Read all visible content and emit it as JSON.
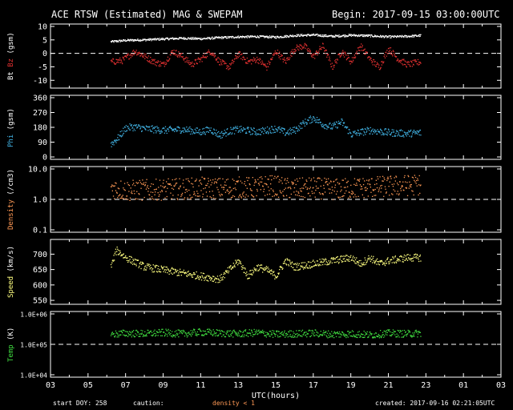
{
  "header": {
    "title": "ACE RTSW (Estimated) MAG & SWEPAM",
    "begin": "Begin: 2017-09-15 03:00:00UTC"
  },
  "footer": {
    "start_doy": "start DOY: 258",
    "caution": "caution:",
    "density_note": "density < 1",
    "created": "created: 2017-09-16 02:21:05UTC"
  },
  "colors": {
    "bt": "#ffffff",
    "bz": "#e03030",
    "phi": "#40b0e0",
    "density": "#ff9955",
    "speed": "#ffff80",
    "temp": "#40dd40",
    "axis": "#ffffff",
    "background": "#000000"
  },
  "chart_data": {
    "type": "scatter",
    "xlabel": "UTC(hours)",
    "x_ticks": [
      "03",
      "05",
      "07",
      "09",
      "11",
      "13",
      "15",
      "17",
      "19",
      "21",
      "23",
      "01",
      "03"
    ],
    "x_range_hours": [
      3,
      27
    ],
    "data_span_hours": [
      6.2,
      22.7
    ],
    "panels": [
      {
        "id": "mag",
        "ylabel": [
          {
            "text": "Bt",
            "color": "#ffffff"
          },
          {
            "text": "Bz",
            "color": "#e03030"
          },
          {
            "text": "(gsm)",
            "color": "#ffffff"
          }
        ],
        "ylim": [
          -12,
          10
        ],
        "ytick_values": [
          10,
          5,
          0,
          -5,
          -10
        ],
        "ytick_labels": [
          "10",
          "5",
          "0",
          "-5",
          "-10"
        ],
        "reference_line": 0,
        "log": false,
        "series": [
          {
            "name": "Bt",
            "color": "#ffffff",
            "x": [
              6.2,
              7,
              8,
              9,
              10,
              11,
              12,
              13,
              14,
              15,
              16,
              17,
              18,
              19,
              20,
              21,
              22,
              22.7
            ],
            "y": [
              4.5,
              5.0,
              5.2,
              5.5,
              5.8,
              5.6,
              6.0,
              6.3,
              6.4,
              6.2,
              6.8,
              7.0,
              6.5,
              6.9,
              6.7,
              6.3,
              6.5,
              6.8
            ],
            "jitter": 0.4
          },
          {
            "name": "Bz",
            "color": "#e03030",
            "x": [
              6.2,
              6.8,
              7.5,
              8,
              8.5,
              9,
              9.5,
              10,
              10.5,
              11,
              11.5,
              12,
              12.5,
              13,
              13.5,
              14,
              14.5,
              15,
              15.5,
              16,
              16.5,
              17,
              17.5,
              18,
              18.5,
              19,
              19.5,
              20,
              20.5,
              21,
              21.5,
              22,
              22.7
            ],
            "y": [
              -3,
              -2.5,
              1,
              -1,
              -3,
              -4,
              1,
              -1,
              -4,
              -2,
              1,
              -3,
              -5,
              0,
              -3,
              -2,
              -5,
              1,
              -3,
              2,
              3,
              -1,
              3,
              -5,
              1,
              -3,
              3,
              -2,
              -5,
              2,
              -2,
              -4,
              -3
            ],
            "jitter": 1.2
          }
        ]
      },
      {
        "id": "phi",
        "ylabel": [
          {
            "text": "Phi",
            "color": "#40b0e0"
          },
          {
            "text": "(gsm)",
            "color": "#ffffff"
          }
        ],
        "ylim": [
          0,
          360
        ],
        "ytick_values": [
          360,
          270,
          180,
          90,
          0
        ],
        "ytick_labels": [
          "360",
          "270",
          "180",
          "90",
          "0"
        ],
        "reference_line": null,
        "log": false,
        "series": [
          {
            "name": "Phi",
            "color": "#40b0e0",
            "x": [
              6.2,
              6.6,
              7,
              7.5,
              8,
              9,
              10,
              11,
              11.5,
              12,
              12.5,
              13,
              14,
              15,
              15.5,
              16,
              16.5,
              17,
              17.5,
              18,
              18.5,
              19,
              20,
              21,
              22,
              22.7
            ],
            "y": [
              80,
              120,
              180,
              185,
              175,
              165,
              170,
              155,
              170,
              135,
              160,
              170,
              155,
              175,
              150,
              165,
              210,
              240,
              200,
              185,
              215,
              140,
              165,
              150,
              145,
              150
            ],
            "jitter": 22
          }
        ]
      },
      {
        "id": "density",
        "ylabel": [
          {
            "text": "Density",
            "color": "#ff9955"
          },
          {
            "text": "(/cm3)",
            "color": "#ffffff"
          }
        ],
        "ylim": [
          0.1,
          10
        ],
        "ytick_values": [
          10,
          1,
          0.1
        ],
        "ytick_labels": [
          "10.0",
          "1.0",
          "0.1"
        ],
        "reference_line": 1,
        "log": true,
        "series": [
          {
            "name": "Density",
            "color": "#ff9955",
            "x": [
              6.2,
              7,
              8,
              9,
              10,
              11,
              12,
              13,
              14,
              14.5,
              15,
              15.5,
              16,
              17,
              18,
              19,
              20,
              21,
              22,
              22.7
            ],
            "y": [
              2.5,
              2.0,
              2.1,
              2.2,
              2.3,
              2.5,
              2.4,
              2.6,
              2.5,
              3.0,
              2.8,
              2.4,
              2.3,
              2.5,
              2.2,
              2.4,
              2.6,
              2.8,
              3.0,
              3.2
            ],
            "jitter": 0.35
          }
        ]
      },
      {
        "id": "speed",
        "ylabel": [
          {
            "text": "Speed",
            "color": "#ffff80"
          },
          {
            "text": "(km/s)",
            "color": "#ffffff"
          }
        ],
        "ylim": [
          545,
          740
        ],
        "ytick_values": [
          700,
          650,
          600,
          550
        ],
        "ytick_labels": [
          "700",
          "650",
          "600",
          "550"
        ],
        "reference_line": null,
        "log": false,
        "series": [
          {
            "name": "Speed",
            "color": "#ffff80",
            "x": [
              6.2,
              6.5,
              7,
              8,
              9,
              10,
              11,
              12,
              12.5,
              13,
              13.5,
              14,
              14.5,
              15,
              15.5,
              16,
              17,
              18,
              19,
              19.5,
              20,
              20.5,
              21,
              22,
              22.7
            ],
            "y": [
              660,
              715,
              690,
              660,
              650,
              640,
              630,
              620,
              650,
              680,
              630,
              660,
              650,
              630,
              680,
              660,
              670,
              680,
              690,
              670,
              690,
              670,
              680,
              690,
              690
            ],
            "jitter": 12
          }
        ]
      },
      {
        "id": "temp",
        "ylabel": [
          {
            "text": "Temp",
            "color": "#40dd40"
          },
          {
            "text": "(K)",
            "color": "#ffffff"
          }
        ],
        "ylim": [
          10000,
          1000000
        ],
        "ytick_values": [
          1000000,
          100000,
          10000
        ],
        "ytick_labels": [
          "1.0E+06",
          "1.0E+05",
          "1.0E+04"
        ],
        "reference_line": 100000,
        "log": true,
        "series": [
          {
            "name": "Temp",
            "color": "#40dd40",
            "x": [
              6.2,
              7,
              8,
              9,
              10,
              11,
              12,
              13,
              14,
              15,
              16,
              17,
              18,
              19,
              20,
              21,
              22,
              22.7
            ],
            "y": [
              220000,
              240000,
              230000,
              250000,
              230000,
              260000,
              240000,
              230000,
              250000,
              220000,
              230000,
              240000,
              220000,
              230000,
              210000,
              240000,
              230000,
              240000
            ],
            "jitter": 0.12
          }
        ]
      }
    ]
  }
}
